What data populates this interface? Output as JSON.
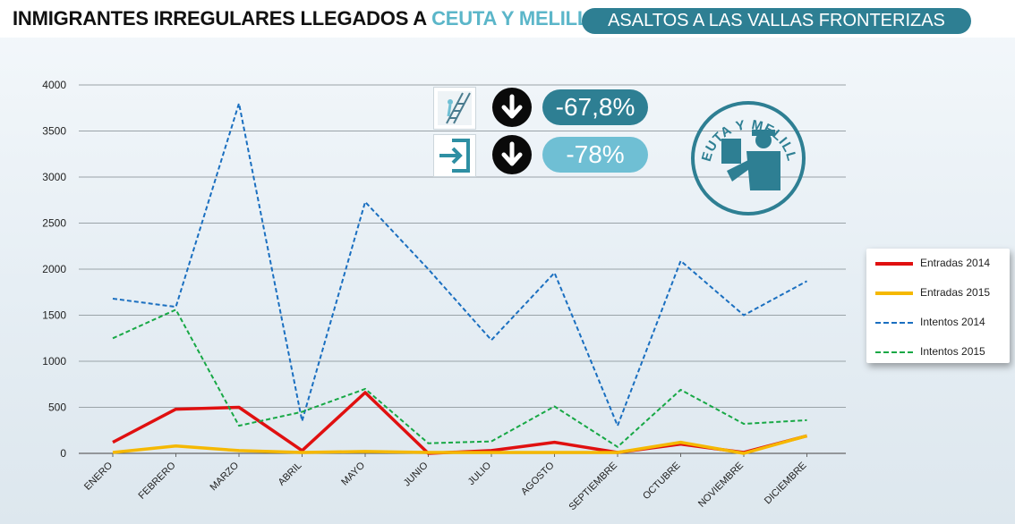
{
  "header": {
    "title_main": "INMIGRANTES IRREGULARES LLEGADOS A ",
    "title_accent": "CEUTA Y MELILLA",
    "subtitle": "ASALTOS A LAS VALLAS FRONTERIZAS"
  },
  "stats": [
    {
      "icon": "ladder-climb-icon",
      "arrow": "arrow-down-icon",
      "value": "-67,8%",
      "color": "#2e7f93"
    },
    {
      "icon": "entry-door-icon",
      "arrow": "arrow-down-icon",
      "value": "-78%",
      "color": "#6fbfd4"
    }
  ],
  "badge": {
    "text": "CEUTA Y MELILLA",
    "icon": "border-police-icon"
  },
  "chart_data": {
    "type": "line",
    "categories": [
      "ENERO",
      "FEBRERO",
      "MARZO",
      "ABRIL",
      "MAYO",
      "JUNIO",
      "JULIO",
      "AGOSTO",
      "SEPTIEMBRE",
      "OCTUBRE",
      "NOVIEMBRE",
      "DICIEMBRE"
    ],
    "ylim": [
      0,
      4000
    ],
    "yticks": [
      0,
      500,
      1000,
      1500,
      2000,
      2500,
      3000,
      3500,
      4000
    ],
    "grid": true,
    "legend_position": "right",
    "series": [
      {
        "name": "Entradas 2014",
        "color": "#e01010",
        "style": "solid",
        "values": [
          120,
          480,
          500,
          30,
          660,
          0,
          30,
          120,
          10,
          100,
          10,
          190
        ]
      },
      {
        "name": "Entradas 2015",
        "color": "#f5b800",
        "style": "solid",
        "values": [
          10,
          80,
          30,
          10,
          20,
          10,
          10,
          10,
          10,
          120,
          0,
          190
        ]
      },
      {
        "name": "Intentos 2014",
        "color": "#1a6fc0",
        "style": "dashed",
        "values": [
          1680,
          1590,
          3800,
          350,
          2730,
          2000,
          1230,
          1960,
          300,
          2090,
          1500,
          1870
        ]
      },
      {
        "name": "Intentos 2015",
        "color": "#17a845",
        "style": "dashed",
        "values": [
          1250,
          1560,
          300,
          450,
          700,
          110,
          130,
          510,
          70,
          690,
          320,
          360
        ]
      }
    ]
  }
}
